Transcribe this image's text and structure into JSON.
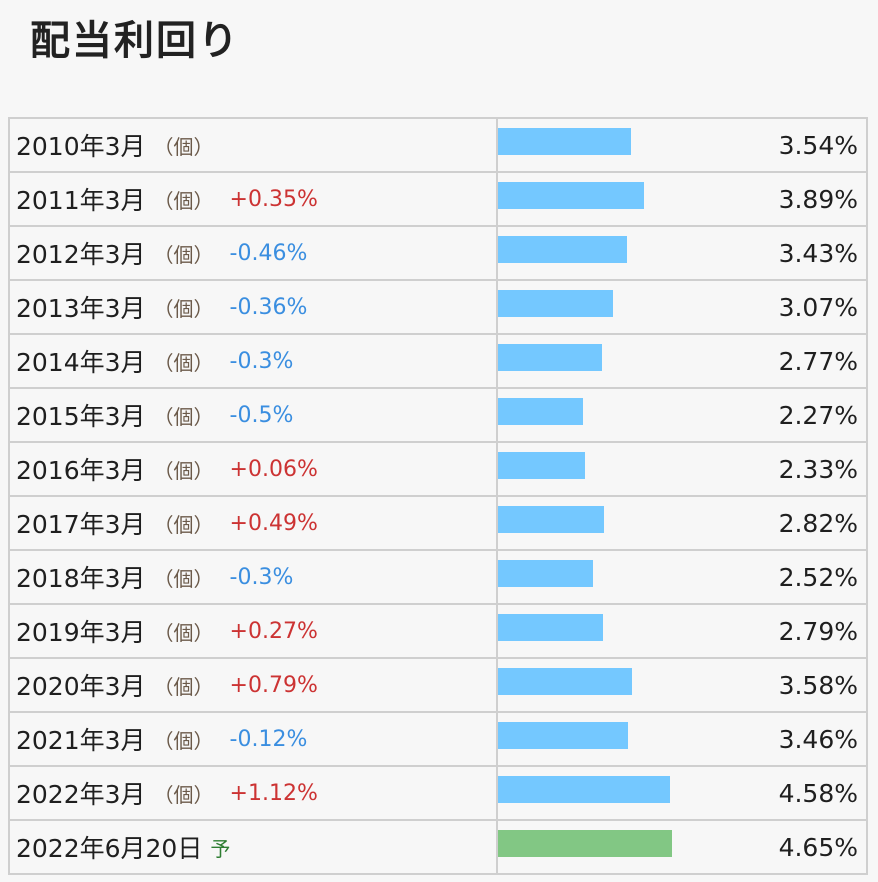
{
  "title": "配当利回り",
  "colors": {
    "bar": "#74c8ff",
    "forecast_bar": "#82c784",
    "up": "#cc3333",
    "down": "#3a8ee0"
  },
  "chart_data": {
    "type": "bar",
    "title": "配当利回り",
    "orientation": "horizontal",
    "categories": [
      "2010年3月",
      "2011年3月",
      "2012年3月",
      "2013年3月",
      "2014年3月",
      "2015年3月",
      "2016年3月",
      "2017年3月",
      "2018年3月",
      "2019年3月",
      "2020年3月",
      "2021年3月",
      "2022年3月",
      "2022年6月20日"
    ],
    "values": [
      3.54,
      3.89,
      3.43,
      3.07,
      2.77,
      2.27,
      2.33,
      2.82,
      2.52,
      2.79,
      3.58,
      3.46,
      4.58,
      4.65
    ],
    "xlim": [
      0,
      13
    ],
    "rows": [
      {
        "period": "2010年3月",
        "tag": "（個）",
        "change": "",
        "value": 3.54,
        "value_label": "3.54%"
      },
      {
        "period": "2011年3月",
        "tag": "（個）",
        "change": "+0.35%",
        "value": 3.89,
        "value_label": "3.89%"
      },
      {
        "period": "2012年3月",
        "tag": "（個）",
        "change": "-0.46%",
        "value": 3.43,
        "value_label": "3.43%"
      },
      {
        "period": "2013年3月",
        "tag": "（個）",
        "change": "-0.36%",
        "value": 3.07,
        "value_label": "3.07%"
      },
      {
        "period": "2014年3月",
        "tag": "（個）",
        "change": "-0.3%",
        "value": 2.77,
        "value_label": "2.77%"
      },
      {
        "period": "2015年3月",
        "tag": "（個）",
        "change": "-0.5%",
        "value": 2.27,
        "value_label": "2.27%"
      },
      {
        "period": "2016年3月",
        "tag": "（個）",
        "change": "+0.06%",
        "value": 2.33,
        "value_label": "2.33%"
      },
      {
        "period": "2017年3月",
        "tag": "（個）",
        "change": "+0.49%",
        "value": 2.82,
        "value_label": "2.82%"
      },
      {
        "period": "2018年3月",
        "tag": "（個）",
        "change": "-0.3%",
        "value": 2.52,
        "value_label": "2.52%"
      },
      {
        "period": "2019年3月",
        "tag": "（個）",
        "change": "+0.27%",
        "value": 2.79,
        "value_label": "2.79%"
      },
      {
        "period": "2020年3月",
        "tag": "（個）",
        "change": "+0.79%",
        "value": 3.58,
        "value_label": "3.58%"
      },
      {
        "period": "2021年3月",
        "tag": "（個）",
        "change": "-0.12%",
        "value": 3.46,
        "value_label": "3.46%"
      },
      {
        "period": "2022年3月",
        "tag": "（個）",
        "change": "+1.12%",
        "value": 4.58,
        "value_label": "4.58%"
      },
      {
        "period": "2022年6月20日",
        "tag": "予",
        "change": "",
        "value": 4.65,
        "value_label": "4.65%",
        "forecast": true
      }
    ]
  }
}
